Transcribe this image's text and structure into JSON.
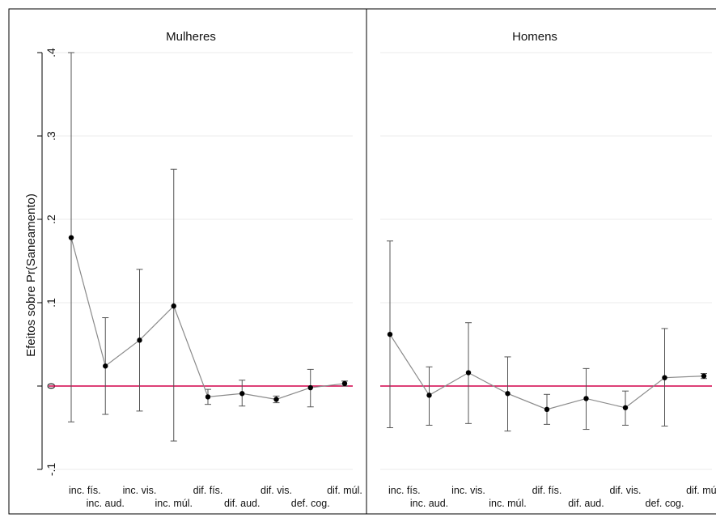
{
  "chart_data": [
    {
      "type": "line",
      "title": "Mulheres",
      "ylabel": "Efeitos sobre  Pr(Saneamento)",
      "xlabel": "",
      "ylim": [
        -0.12,
        0.4
      ],
      "yticks": [
        -0.1,
        0,
        0.1,
        0.2,
        0.3,
        0.4
      ],
      "ytick_labels": [
        "-.1",
        "0",
        ".1",
        ".2",
        ".3",
        ".4"
      ],
      "categories": [
        "inc. fís.",
        "inc. aud.",
        "inc. vis.",
        "inc. múl.",
        "dif. fís.",
        "dif. aud.",
        "dif. vis.",
        "def. cog.",
        "dif. múl."
      ],
      "series": [
        {
          "values": [
            0.178,
            0.024,
            0.055,
            0.096,
            -0.013,
            -0.009,
            -0.016,
            -0.002,
            0.003
          ],
          "ci_low": [
            -0.043,
            -0.034,
            -0.03,
            -0.066,
            -0.022,
            -0.024,
            -0.02,
            -0.025,
            0.0
          ],
          "ci_high": [
            0.4,
            0.082,
            0.14,
            0.26,
            -0.004,
            0.007,
            -0.012,
            0.02,
            0.006
          ]
        }
      ],
      "reference_line": 0,
      "grid": true,
      "colors": {
        "line": "#8a8a8a",
        "marker": "#000000",
        "reference": "#d2004a",
        "grid": "#ebebeb"
      }
    },
    {
      "type": "line",
      "title": "Homens",
      "ylim": [
        -0.12,
        0.4
      ],
      "categories": [
        "inc. fís.",
        "inc. aud.",
        "inc. vis.",
        "inc. múl.",
        "dif. fís.",
        "dif. aud.",
        "dif. vis.",
        "def. cog.",
        "dif. múl."
      ],
      "series": [
        {
          "values": [
            0.062,
            -0.011,
            0.016,
            -0.009,
            -0.028,
            -0.015,
            -0.026,
            0.01,
            0.012
          ],
          "ci_low": [
            -0.05,
            -0.047,
            -0.045,
            -0.054,
            -0.046,
            -0.052,
            -0.047,
            -0.048,
            0.009
          ],
          "ci_high": [
            0.174,
            0.023,
            0.076,
            0.035,
            -0.01,
            0.021,
            -0.006,
            0.069,
            0.015
          ]
        }
      ],
      "reference_line": 0,
      "grid": true,
      "colors": {
        "line": "#8a8a8a",
        "marker": "#000000",
        "reference": "#d2004a",
        "grid": "#ebebeb"
      }
    }
  ]
}
